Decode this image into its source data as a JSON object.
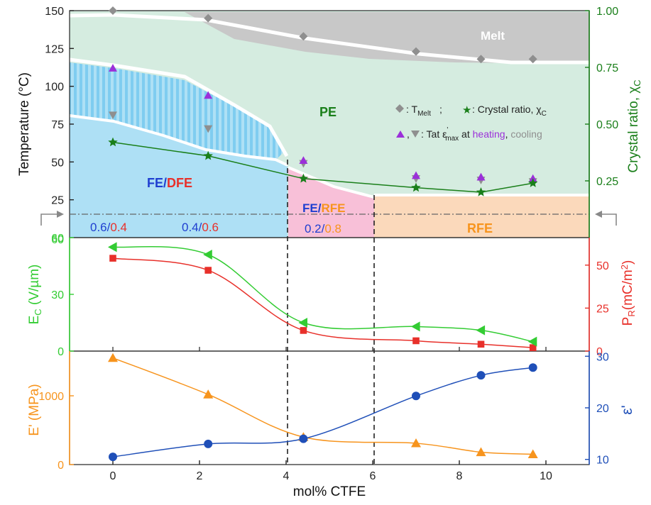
{
  "colors": {
    "fe_region": "#aee0f5",
    "fe_hatch": "#7fcdf0",
    "pe_region": "#d5ece0",
    "melt_region": "#c8c8c8",
    "fe_rfe_region": "#f8c0d8",
    "rfe_region": "#fbd9bb",
    "green": "#1a7f1a",
    "ec_green": "#33cc33",
    "pr_red": "#e8302a",
    "ep_orange": "#f7941d",
    "eps_blue": "#1f4fb8",
    "purple": "#9b30d9",
    "gray_marker": "#8f8f8f",
    "dark_blue_label": "#1f3fd0",
    "red_label": "#e8302a",
    "orange_label": "#f7941d"
  },
  "region_labels": {
    "melt": "Melt",
    "pe": "PE",
    "fe": "FE",
    "dfe": "DFE",
    "rfe": "RFE",
    "slash": "/"
  },
  "ratio_labels": [
    {
      "a": "0.6",
      "b": "0.4",
      "b_color": "red"
    },
    {
      "a": "0.4",
      "b": "0.6",
      "b_color": "red"
    },
    {
      "a": "0.2",
      "b": "0.8",
      "b_color": "orange"
    }
  ],
  "legend": {
    "line1_a": ": T",
    "line1_sub": "Melt",
    "line1_b": ";",
    "line1_c": ": Crystal ratio, χ",
    "line1_c_sub": "C",
    "line2_a": ",",
    "line2_b": ": Tat ε",
    "line2_sup": "'",
    "line2_sub": "max",
    "line2_c": " at ",
    "line2_heating": "heating",
    "line2_comma": ", ",
    "line2_cooling": "cooling"
  },
  "chart_data": [
    {
      "type": "scatter",
      "panel": "top",
      "xlabel": "mol% CTFE",
      "xlim": [
        -1,
        11
      ],
      "ylabel": "Temperature (°C)",
      "ylim": [
        0,
        150
      ],
      "yticks": [
        "25",
        "50",
        "75",
        "100",
        "125",
        "150"
      ],
      "y2label": "Crystal ratio, χC",
      "y2lim": [
        0,
        1
      ],
      "y2ticks": [
        "0.25",
        "0.50",
        "0.75",
        "1.00"
      ],
      "reference_line_y": 24,
      "series": [
        {
          "name": "TMelt",
          "marker": "diamond",
          "x": [
            0,
            2.2,
            4.4,
            7,
            8.5,
            9.7
          ],
          "y": [
            150,
            145,
            133,
            123,
            118,
            118
          ]
        },
        {
          "name": "heating",
          "marker": "triangle-up",
          "x": [
            0,
            2.2,
            4.4,
            7,
            8.5,
            9.7
          ],
          "y": [
            112,
            94,
            51,
            41,
            40,
            39
          ]
        },
        {
          "name": "cooling",
          "marker": "triangle-down",
          "x": [
            0,
            2.2,
            4.4,
            7,
            8.5,
            9.7
          ],
          "y": [
            81,
            72,
            49,
            39,
            38,
            37
          ]
        },
        {
          "name": "Crystal ratio, χC",
          "marker": "star",
          "axis": "right",
          "x": [
            0,
            2.2,
            4.4,
            7,
            8.5,
            9.7
          ],
          "y": [
            0.42,
            0.36,
            0.26,
            0.22,
            0.2,
            0.24
          ]
        }
      ]
    },
    {
      "type": "line",
      "panel": "middle",
      "ylabel": "EC (V/µm)",
      "ylim": [
        0,
        60
      ],
      "yticks": [
        "0",
        "30",
        "60"
      ],
      "y2label": "PR(mC/m2)",
      "y2lim": [
        0,
        66
      ],
      "y2ticks": [
        "0",
        "25",
        "50"
      ],
      "series": [
        {
          "name": "EC",
          "marker": "triangle-left",
          "x": [
            0,
            2.2,
            4.4,
            7,
            8.5,
            9.7
          ],
          "y": [
            55,
            51,
            15,
            13,
            11,
            5
          ]
        },
        {
          "name": "PR",
          "marker": "square",
          "axis": "right",
          "x": [
            0,
            2.2,
            4.4,
            7,
            8.5,
            9.7
          ],
          "y": [
            54,
            47,
            12,
            6,
            4,
            2
          ]
        }
      ]
    },
    {
      "type": "line",
      "panel": "bottom",
      "xlabel": "mol% CTFE",
      "xticks": [
        "0",
        "2",
        "4",
        "6",
        "8",
        "10"
      ],
      "ylabel": "E' (MPa)",
      "ylim": [
        0,
        1650
      ],
      "yticks": [
        "0",
        "1000"
      ],
      "y2label": "ε'",
      "y2lim": [
        9,
        31
      ],
      "y2ticks": [
        "10",
        "20",
        "30"
      ],
      "series": [
        {
          "name": "E'",
          "marker": "triangle-up",
          "x": [
            0,
            2.2,
            4.4,
            7,
            8.5,
            9.7
          ],
          "y": [
            1550,
            1020,
            400,
            310,
            180,
            150
          ]
        },
        {
          "name": "ε'",
          "marker": "circle",
          "axis": "right",
          "x": [
            0,
            2.2,
            4.4,
            7,
            8.5,
            9.7
          ],
          "y": [
            10.5,
            13,
            14,
            22.3,
            26.3,
            27.8
          ]
        }
      ]
    }
  ]
}
